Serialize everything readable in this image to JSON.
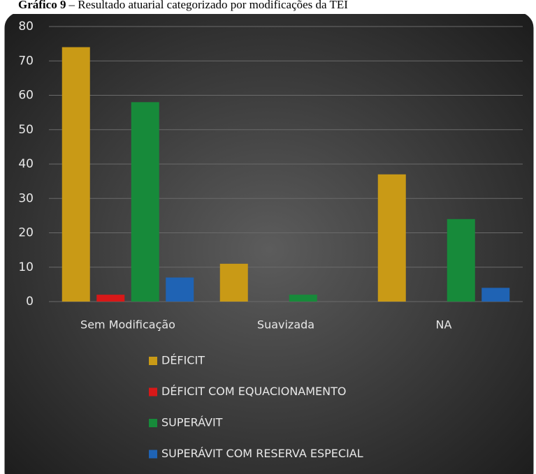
{
  "chart_data": {
    "type": "bar",
    "title_label": "Gráfico 9",
    "title": "– Resultado atuarial categorizado por modificações da TEI",
    "categories": [
      "Sem Modificação",
      "Suavizada",
      "NA"
    ],
    "series": [
      {
        "name": "DÉFICIT",
        "color": "#c99a16",
        "values": [
          74,
          11,
          37
        ]
      },
      {
        "name": "DÉFICIT COM EQUACIONAMENTO",
        "color": "#d81818",
        "values": [
          2,
          0,
          0
        ]
      },
      {
        "name": "SUPERÁVIT",
        "color": "#178a3a",
        "values": [
          58,
          2,
          24
        ]
      },
      {
        "name": "SUPERÁVIT COM RESERVA ESPECIAL",
        "color": "#1f63b4",
        "values": [
          7,
          0,
          4
        ]
      }
    ],
    "ylim": [
      0,
      80
    ],
    "yticks": [
      0,
      10,
      20,
      30,
      40,
      50,
      60,
      70,
      80
    ],
    "grid": true,
    "legend": "bottom"
  }
}
